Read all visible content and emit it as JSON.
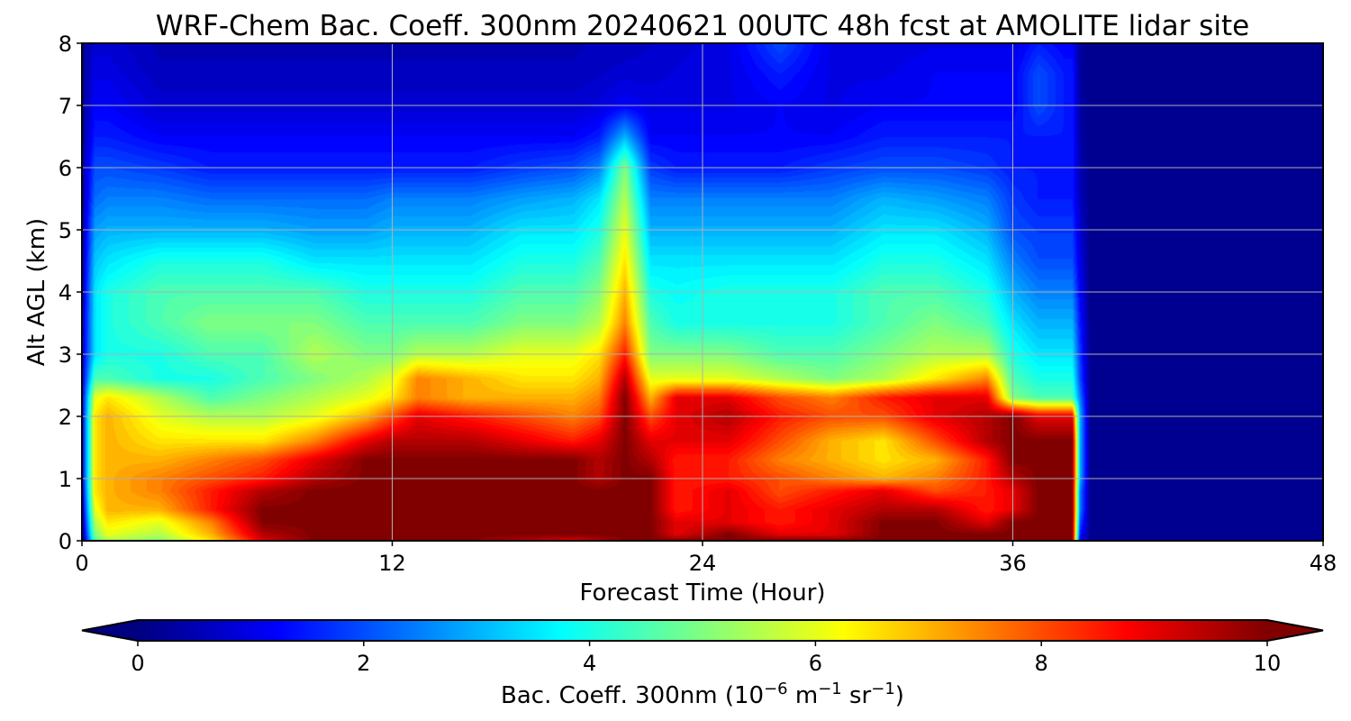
{
  "chart_data": {
    "type": "heatmap",
    "title": "WRF-Chem Bac. Coeff. 300nm  20240621 00UTC 48h fcst at AMOLITE lidar site",
    "xlabel": "Forecast Time (Hour)",
    "ylabel": "Alt AGL (km)",
    "xlim": [
      0,
      48
    ],
    "ylim": [
      0,
      8
    ],
    "x_ticks": [
      "0",
      "12",
      "24",
      "36",
      "48"
    ],
    "y_ticks": [
      "0",
      "1",
      "2",
      "3",
      "4",
      "5",
      "6",
      "7",
      "8"
    ],
    "grid": true,
    "x": [
      0,
      0.5,
      1,
      3,
      5,
      7,
      9,
      11,
      12,
      13,
      15,
      17,
      19,
      20,
      21,
      22,
      23,
      25,
      27,
      29,
      31,
      33,
      35,
      36,
      37,
      38,
      38.3,
      38.6,
      39,
      41,
      44,
      48
    ],
    "y": [
      0,
      0.1,
      0.3,
      0.5,
      0.8,
      1.0,
      1.3,
      1.6,
      2.0,
      2.3,
      2.6,
      3.0,
      3.5,
      4.0,
      4.5,
      5.0,
      5.5,
      6.0,
      6.5,
      7.0,
      7.5,
      8.0
    ],
    "z": [
      [
        0.1,
        4.5,
        5.5,
        5.0,
        6.5,
        9.0,
        10,
        10,
        10,
        10,
        10,
        9.5,
        9.0,
        9.5,
        10,
        10,
        10,
        10,
        10,
        10,
        10,
        10,
        10,
        10,
        10,
        10,
        10,
        1.0,
        0.1,
        0.1,
        0.1,
        0.1
      ],
      [
        0.2,
        5.0,
        6.0,
        5.5,
        7.0,
        9.5,
        10,
        10,
        10,
        10,
        10,
        10,
        10,
        10,
        10,
        10,
        9.0,
        10,
        9.0,
        9.0,
        10,
        10,
        10,
        10,
        10,
        10,
        10,
        1.5,
        0.1,
        0.1,
        0.1,
        0.1
      ],
      [
        0.4,
        5.5,
        6.5,
        6.0,
        7.5,
        10,
        10,
        10,
        10,
        10,
        10,
        10,
        10,
        10,
        10,
        10,
        9.0,
        9.0,
        8.5,
        9.0,
        10,
        10,
        9.0,
        10,
        10,
        10,
        10,
        2.0,
        0.1,
        0.1,
        0.1,
        0.1
      ],
      [
        0.6,
        6.0,
        7.0,
        7.0,
        8.5,
        10,
        10,
        10,
        10,
        10,
        10,
        10,
        10,
        10,
        10,
        10,
        8.5,
        9.0,
        8.5,
        9.0,
        9.5,
        9.5,
        8.5,
        9.0,
        10,
        10,
        10,
        2.5,
        0.1,
        0.1,
        0.1,
        0.1
      ],
      [
        0.8,
        6.5,
        7.0,
        7.5,
        8.5,
        9.5,
        10,
        10,
        10,
        10,
        10,
        10,
        10,
        10,
        10,
        10,
        8.5,
        9.0,
        8.0,
        8.5,
        9.0,
        8.0,
        8.5,
        9.0,
        10,
        10,
        10,
        2.5,
        0.1,
        0.1,
        0.1,
        0.1
      ],
      [
        1.0,
        6.5,
        7.0,
        7.5,
        8.0,
        8.5,
        9.5,
        10,
        10,
        10,
        10,
        10,
        10,
        9.5,
        10,
        10,
        8.5,
        8.5,
        8.0,
        7.5,
        7.0,
        7.5,
        8.5,
        9.5,
        10,
        10,
        10,
        3.0,
        0.1,
        0.1,
        0.1,
        0.1
      ],
      [
        1.0,
        6.5,
        7.0,
        7.0,
        7.5,
        8.0,
        9.0,
        10,
        10,
        10,
        10,
        10,
        10,
        9.5,
        10,
        9.5,
        8.5,
        8.5,
        7.5,
        7.0,
        6.5,
        7.0,
        8.5,
        10,
        10,
        10,
        10,
        3.0,
        0.1,
        0.1,
        0.1,
        0.1
      ],
      [
        1.0,
        6.5,
        7.0,
        6.5,
        6.5,
        6.5,
        7.5,
        9.0,
        9.5,
        9.5,
        9.5,
        9.0,
        8.5,
        9.0,
        10,
        9.0,
        9.0,
        9.0,
        8.0,
        7.0,
        6.5,
        8.0,
        9.5,
        10,
        10,
        10,
        10,
        3.0,
        0.1,
        0.1,
        0.1,
        0.1
      ],
      [
        1.0,
        6.5,
        7.0,
        6.0,
        5.5,
        5.5,
        6.0,
        7.0,
        8.0,
        9.0,
        8.5,
        8.0,
        7.5,
        8.0,
        10,
        8.0,
        9.0,
        9.5,
        8.5,
        8.0,
        8.0,
        9.0,
        9.5,
        10,
        9.0,
        9.0,
        9.0,
        3.0,
        0.1,
        0.1,
        0.1,
        0.1
      ],
      [
        1.0,
        6.0,
        6.5,
        5.5,
        4.5,
        5.0,
        5.5,
        6.0,
        6.5,
        7.5,
        7.0,
        7.0,
        7.0,
        7.5,
        10,
        7.0,
        9.0,
        9.0,
        8.0,
        7.5,
        8.5,
        9.0,
        9.0,
        5.0,
        4.5,
        4.5,
        4.5,
        2.5,
        0.1,
        0.1,
        0.1,
        0.1
      ],
      [
        0.9,
        4.5,
        4.5,
        4.0,
        4.0,
        4.5,
        5.0,
        5.5,
        6.0,
        7.5,
        7.0,
        6.5,
        6.5,
        7.0,
        9.5,
        6.0,
        6.0,
        6.0,
        5.5,
        5.0,
        5.5,
        6.5,
        7.5,
        4.5,
        4.0,
        4.0,
        4.0,
        2.0,
        0.1,
        0.1,
        0.1,
        0.1
      ],
      [
        0.8,
        3.5,
        4.0,
        4.0,
        4.5,
        4.5,
        5.5,
        5.0,
        5.0,
        5.5,
        5.5,
        6.0,
        6.0,
        6.5,
        8.5,
        5.0,
        5.0,
        5.0,
        4.5,
        4.5,
        5.0,
        5.5,
        5.5,
        4.0,
        3.5,
        3.5,
        3.5,
        1.8,
        0.1,
        0.1,
        0.1,
        0.1
      ],
      [
        0.7,
        3.5,
        4.0,
        4.5,
        5.0,
        5.0,
        5.0,
        4.5,
        4.5,
        4.5,
        4.5,
        5.0,
        5.0,
        5.5,
        7.5,
        4.5,
        4.0,
        4.0,
        4.0,
        4.0,
        4.5,
        5.0,
        4.5,
        3.5,
        3.0,
        3.0,
        3.0,
        1.5,
        0.1,
        0.1,
        0.1,
        0.1
      ],
      [
        0.6,
        3.5,
        4.0,
        4.5,
        4.5,
        4.5,
        4.5,
        4.0,
        4.0,
        4.0,
        4.0,
        4.5,
        4.5,
        5.0,
        7.0,
        4.0,
        3.8,
        4.0,
        4.0,
        4.0,
        4.5,
        4.5,
        4.0,
        3.0,
        2.5,
        2.5,
        2.5,
        1.2,
        0.1,
        0.1,
        0.1,
        0.1
      ],
      [
        0.5,
        3.2,
        3.5,
        4.0,
        4.0,
        4.0,
        3.5,
        3.5,
        3.5,
        3.5,
        3.5,
        4.0,
        4.0,
        4.5,
        6.5,
        3.5,
        3.5,
        3.5,
        3.5,
        3.5,
        4.0,
        4.0,
        3.5,
        2.5,
        2.0,
        2.0,
        2.0,
        1.0,
        0.1,
        0.1,
        0.1,
        0.1
      ],
      [
        0.4,
        2.8,
        3.0,
        3.0,
        3.0,
        3.0,
        2.8,
        2.8,
        3.0,
        3.0,
        3.0,
        3.5,
        3.5,
        4.0,
        6.0,
        3.0,
        3.0,
        3.0,
        3.0,
        3.0,
        3.5,
        3.5,
        3.0,
        2.0,
        1.8,
        1.8,
        1.8,
        0.8,
        0.1,
        0.1,
        0.1,
        0.1
      ],
      [
        0.3,
        2.3,
        2.5,
        2.5,
        2.3,
        2.3,
        2.3,
        2.3,
        2.5,
        2.5,
        2.5,
        2.8,
        3.0,
        3.5,
        5.5,
        2.5,
        2.5,
        2.5,
        2.5,
        2.5,
        3.0,
        2.8,
        2.5,
        1.8,
        1.5,
        1.5,
        1.5,
        0.6,
        0.1,
        0.1,
        0.1,
        0.1
      ],
      [
        0.3,
        2.0,
        2.0,
        1.8,
        1.5,
        1.5,
        1.5,
        1.5,
        1.5,
        1.5,
        1.5,
        1.8,
        2.0,
        2.5,
        5.0,
        1.8,
        1.5,
        1.5,
        1.5,
        1.8,
        2.0,
        2.0,
        1.8,
        1.5,
        1.5,
        1.5,
        1.5,
        0.5,
        0.1,
        0.1,
        0.1,
        0.1
      ],
      [
        0.2,
        1.5,
        1.5,
        1.2,
        1.2,
        1.2,
        1.2,
        1.2,
        1.2,
        1.2,
        1.2,
        1.2,
        1.2,
        1.5,
        3.0,
        1.2,
        1.2,
        1.2,
        1.2,
        1.2,
        1.5,
        1.5,
        1.5,
        1.5,
        1.5,
        1.5,
        1.5,
        0.4,
        0.1,
        0.1,
        0.1,
        0.1
      ],
      [
        0.2,
        1.2,
        1.2,
        0.8,
        0.8,
        0.8,
        0.8,
        0.8,
        0.8,
        0.8,
        0.8,
        0.8,
        0.8,
        0.9,
        1.2,
        1.0,
        1.0,
        1.0,
        1.2,
        1.0,
        1.2,
        1.2,
        1.2,
        1.2,
        2.0,
        1.5,
        1.5,
        0.4,
        0.1,
        0.1,
        0.1,
        0.1
      ],
      [
        0.2,
        1.0,
        1.0,
        0.6,
        0.6,
        0.6,
        0.6,
        0.6,
        0.6,
        0.6,
        0.6,
        0.6,
        0.6,
        0.7,
        0.8,
        0.8,
        0.9,
        1.0,
        1.5,
        1.0,
        1.0,
        1.2,
        1.2,
        1.2,
        2.0,
        1.5,
        1.5,
        0.3,
        0.1,
        0.1,
        0.1,
        0.1
      ],
      [
        0.2,
        0.8,
        0.8,
        0.5,
        0.5,
        0.5,
        0.5,
        0.5,
        0.5,
        0.5,
        0.5,
        0.5,
        0.5,
        0.6,
        0.6,
        0.7,
        0.8,
        1.0,
        2.0,
        1.0,
        0.9,
        1.0,
        1.0,
        1.0,
        1.5,
        1.2,
        1.2,
        0.3,
        0.1,
        0.1,
        0.1,
        0.1
      ]
    ],
    "colorbar": {
      "label": "Bac. Coeff. 300nm  (10",
      "label_exp1": "−6",
      "label_mid": " m",
      "label_exp2": "−1",
      "label_mid2": " sr",
      "label_exp3": "−1",
      "label_end": ")",
      "ticks": [
        "0",
        "2",
        "4",
        "6",
        "8",
        "10"
      ],
      "range": [
        0,
        10
      ],
      "extend": "both",
      "colormap": "jet"
    }
  }
}
